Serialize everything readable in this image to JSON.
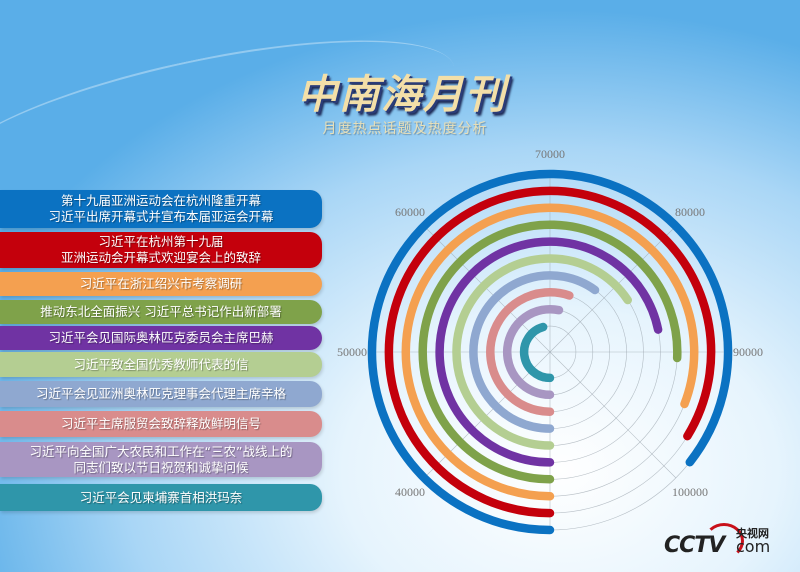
{
  "header": {
    "title": "中南海月刊",
    "subtitle": "月度热点话题及热度分析"
  },
  "logo": {
    "text": "CCTV",
    "cn": "央视网",
    "com": "com"
  },
  "chart_data": {
    "type": "radial-bar",
    "start_angle": "bottom",
    "direction": "clockwise",
    "axis_range": [
      30000,
      110000
    ],
    "tick_labels": [
      "40000",
      "50000",
      "60000",
      "70000",
      "80000",
      "90000",
      "100000"
    ],
    "ticks": [
      40000,
      50000,
      60000,
      70000,
      80000,
      90000,
      100000
    ],
    "grid": true,
    "categories": [
      {
        "lines": [
          "第十九届亚洲运动会在杭州隆重开幕",
          "习近平出席开幕式并宣布本届亚运会开幕"
        ],
        "value": 98500,
        "color": "#0b72c2"
      },
      {
        "lines": [
          "习近平在杭州第十九届",
          "亚洲运动会开幕式欢迎宴会上的致辞"
        ],
        "value": 97000,
        "color": "#c4000c"
      },
      {
        "lines": [
          "习近平在浙江绍兴市考察调研"
        ],
        "value": 94700,
        "color": "#f4a050"
      },
      {
        "lines": [
          "推动东北全面振兴 习近平总书记作出新部署"
        ],
        "value": 90600,
        "color": "#7fa24a"
      },
      {
        "lines": [
          "习近平会见国际奥林匹克委员会主席巴赫"
        ],
        "value": 87400,
        "color": "#7033a3"
      },
      {
        "lines": [
          "习近平致全国优秀教师代表的信"
        ],
        "value": 82500,
        "color": "#b4ce92"
      },
      {
        "lines": [
          "习近平会见亚洲奥林匹克理事会代理主席辛格"
        ],
        "value": 78000,
        "color": "#8fa8d0"
      },
      {
        "lines": [
          "习近平主席服贸会致辞释放鲜明信号"
        ],
        "value": 74200,
        "color": "#d98c8c"
      },
      {
        "lines": [
          "习近平向全国广大农民和工作在“三农”战线上的",
          "同志们致以节日祝贺和诚挚问候"
        ],
        "value": 72700,
        "color": "#a896c2"
      },
      {
        "lines": [
          "习近平会见柬埔寨首相洪玛奈"
        ],
        "value": 66600,
        "color": "#2f96aa"
      }
    ]
  }
}
